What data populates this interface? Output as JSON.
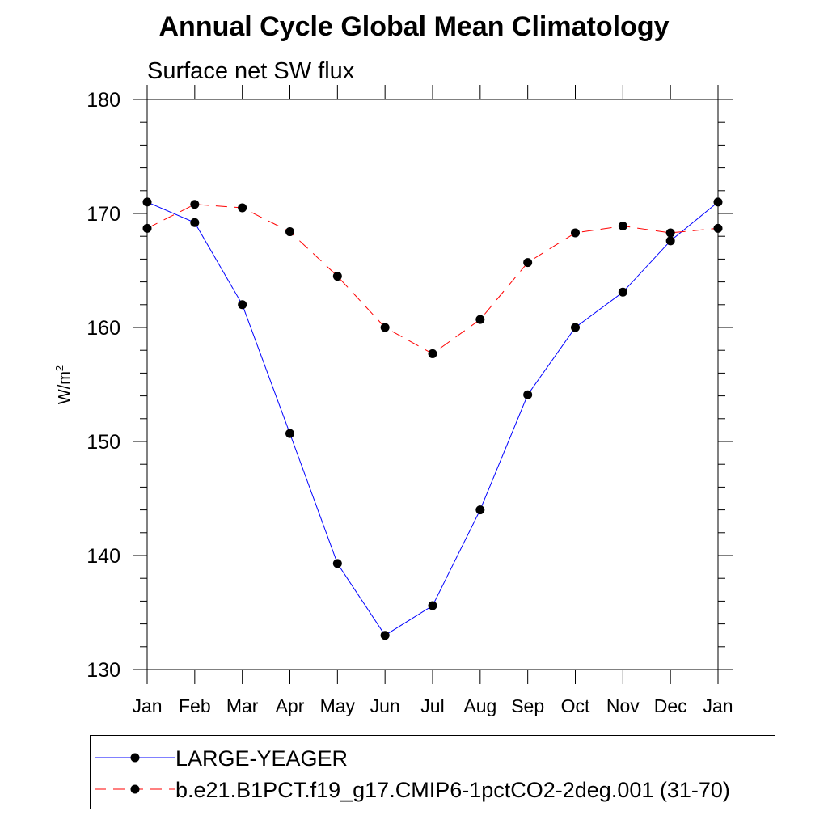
{
  "chart_data": {
    "type": "line",
    "title": "Annual Cycle Global Mean Climatology",
    "subtitle": "Surface net SW flux",
    "xlabel": "",
    "ylabel": "W/m",
    "ylabel_sup": "2",
    "categories": [
      "Jan",
      "Feb",
      "Mar",
      "Apr",
      "May",
      "Jun",
      "Jul",
      "Aug",
      "Sep",
      "Oct",
      "Nov",
      "Dec",
      "Jan"
    ],
    "ylim": [
      130,
      180
    ],
    "yticks": [
      "130",
      "140",
      "150",
      "160",
      "170",
      "180"
    ],
    "y_minor_step": 2,
    "grid": false,
    "legend_position": "bottom",
    "series": [
      {
        "name": "LARGE-YEAGER",
        "color": "#0000ff",
        "dash": "solid",
        "values": [
          171.0,
          169.2,
          162.0,
          150.7,
          139.3,
          133.0,
          135.6,
          144.0,
          154.1,
          160.0,
          163.1,
          167.6,
          171.0
        ]
      },
      {
        "name": "b.e21.B1PCT.f19_g17.CMIP6-1pctCO2-2deg.001 (31-70)",
        "color": "#ff0000",
        "dash": "dashed",
        "values": [
          168.7,
          170.8,
          170.5,
          168.4,
          164.5,
          160.0,
          157.7,
          160.7,
          165.7,
          168.3,
          168.9,
          168.3,
          168.7
        ]
      }
    ]
  }
}
